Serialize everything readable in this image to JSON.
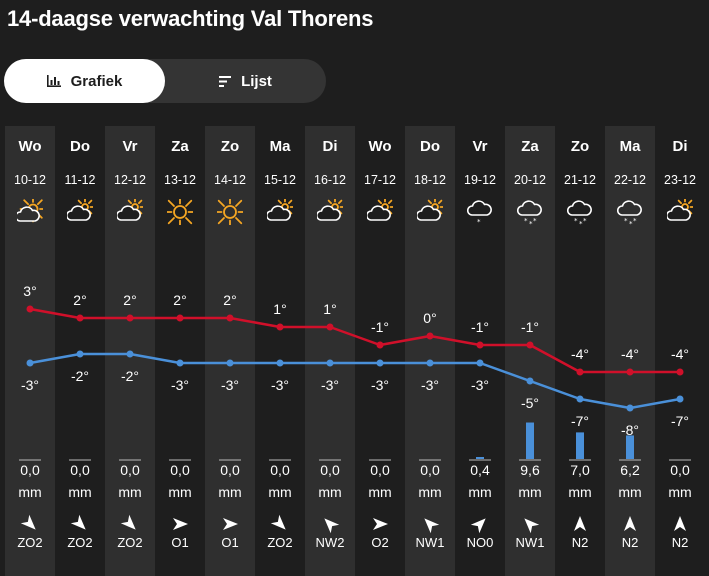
{
  "page": {
    "title": "14-daagse verwachting Val Thorens"
  },
  "tabs": {
    "graph_label": "Grafiek",
    "list_label": "Lijst",
    "active": "graph"
  },
  "colors": {
    "max_line": "#d0102a",
    "min_line": "#4a90d9",
    "bar": "#4a90d9",
    "shaded_col": "#2f2f2f",
    "bg": "#1e1e1e"
  },
  "unit": "mm",
  "days": [
    {
      "day": "Wo",
      "date": "10-12",
      "icon": "partly-cloudy-icon",
      "max": "3°",
      "min": "-3°",
      "precip": "0,0",
      "wind_dir": "ZO",
      "wind": "ZO2",
      "shaded": true
    },
    {
      "day": "Do",
      "date": "11-12",
      "icon": "cloudy-sun-icon",
      "max": "2°",
      "min": "-2°",
      "precip": "0,0",
      "wind_dir": "ZO",
      "wind": "ZO2",
      "shaded": false
    },
    {
      "day": "Vr",
      "date": "12-12",
      "icon": "cloudy-sun-icon",
      "max": "2°",
      "min": "-2°",
      "precip": "0,0",
      "wind_dir": "ZO",
      "wind": "ZO2",
      "shaded": true
    },
    {
      "day": "Za",
      "date": "13-12",
      "icon": "sun-icon",
      "max": "2°",
      "min": "-3°",
      "precip": "0,0",
      "wind_dir": "O",
      "wind": "O1",
      "shaded": false
    },
    {
      "day": "Zo",
      "date": "14-12",
      "icon": "sun-icon",
      "max": "2°",
      "min": "-3°",
      "precip": "0,0",
      "wind_dir": "O",
      "wind": "O1",
      "shaded": true
    },
    {
      "day": "Ma",
      "date": "15-12",
      "icon": "cloudy-sun-icon",
      "max": "1°",
      "min": "-3°",
      "precip": "0,0",
      "wind_dir": "ZO",
      "wind": "ZO2",
      "shaded": false
    },
    {
      "day": "Di",
      "date": "16-12",
      "icon": "cloudy-sun-icon",
      "max": "1°",
      "min": "-3°",
      "precip": "0,0",
      "wind_dir": "NW",
      "wind": "NW2",
      "shaded": true
    },
    {
      "day": "Wo",
      "date": "17-12",
      "icon": "cloudy-sun-icon",
      "max": "-1°",
      "min": "-3°",
      "precip": "0,0",
      "wind_dir": "O",
      "wind": "O2",
      "shaded": false
    },
    {
      "day": "Do",
      "date": "18-12",
      "icon": "cloudy-sun-icon",
      "max": "0°",
      "min": "-3°",
      "precip": "0,0",
      "wind_dir": "NW",
      "wind": "NW1",
      "shaded": true
    },
    {
      "day": "Vr",
      "date": "19-12",
      "icon": "snow-cloud-icon",
      "max": "-1°",
      "min": "-3°",
      "precip": "0,4",
      "wind_dir": "NO",
      "wind": "NO0",
      "shaded": false
    },
    {
      "day": "Za",
      "date": "20-12",
      "icon": "heavy-snow-icon",
      "max": "-1°",
      "min": "-5°",
      "precip": "9,6",
      "wind_dir": "NW",
      "wind": "NW1",
      "shaded": true
    },
    {
      "day": "Zo",
      "date": "21-12",
      "icon": "heavy-snow-icon",
      "max": "-4°",
      "min": "-7°",
      "precip": "7,0",
      "wind_dir": "N",
      "wind": "N2",
      "shaded": false
    },
    {
      "day": "Ma",
      "date": "22-12",
      "icon": "heavy-snow-icon",
      "max": "-4°",
      "min": "-8°",
      "precip": "6,2",
      "wind_dir": "N",
      "wind": "N2",
      "shaded": true
    },
    {
      "day": "Di",
      "date": "23-12",
      "icon": "cloudy-sun-icon",
      "max": "-4°",
      "min": "-7°",
      "precip": "0,0",
      "wind_dir": "N",
      "wind": "N2",
      "shaded": false
    }
  ],
  "chart_data": {
    "type": "line",
    "categories": [
      "10-12",
      "11-12",
      "12-12",
      "13-12",
      "14-12",
      "15-12",
      "16-12",
      "17-12",
      "18-12",
      "19-12",
      "20-12",
      "21-12",
      "22-12",
      "23-12"
    ],
    "series": [
      {
        "values": [
          3,
          2,
          2,
          2,
          2,
          1,
          1,
          -1,
          0,
          -1,
          -1,
          -4,
          -4,
          -4
        ]
      },
      {
        "values": [
          -3,
          -2,
          -2,
          -3,
          -3,
          -3,
          -3,
          -3,
          -3,
          -3,
          -5,
          -7,
          -8,
          -7
        ]
      }
    ],
    "precipitation_mm": [
      0,
      0,
      0,
      0,
      0,
      0,
      0,
      0,
      0,
      0.4,
      9.6,
      7.0,
      6.2,
      0
    ]
  }
}
